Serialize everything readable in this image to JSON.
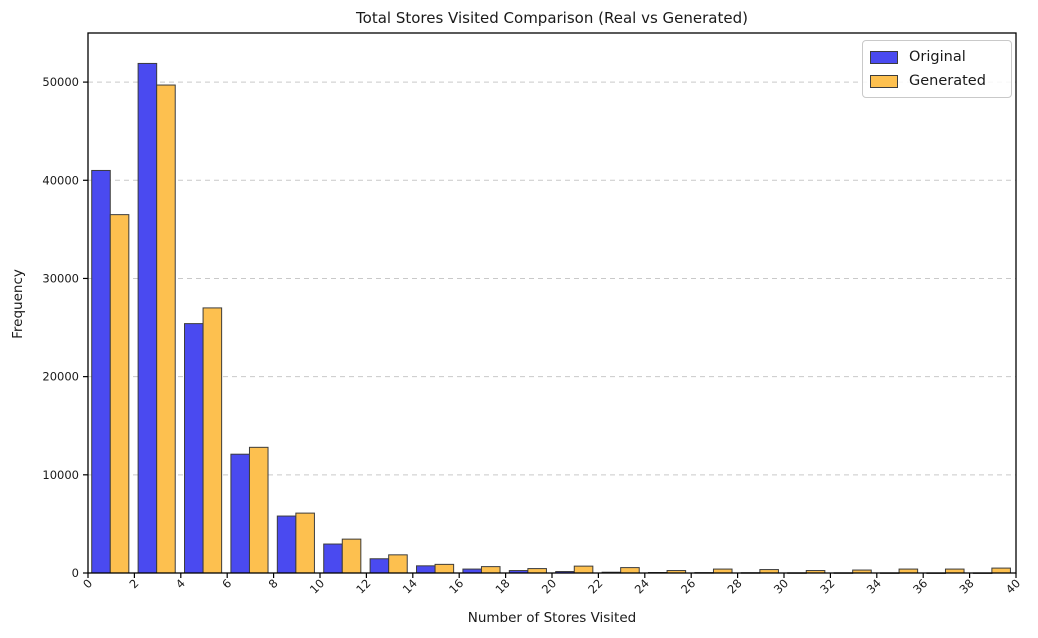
{
  "figure": {
    "title": "Total Stores Visited Comparison (Real vs Generated)",
    "xlabel": "Number of Stores Visited",
    "ylabel": "Frequency"
  },
  "chart_data": {
    "type": "bar",
    "title": "Total Stores Visited Comparison (Real vs Generated)",
    "xlabel": "Number of Stores Visited",
    "ylabel": "Frequency",
    "bin_width": 2,
    "bin_centers": [
      1,
      3,
      5,
      7,
      9,
      11,
      13,
      15,
      17,
      19,
      21,
      23,
      25,
      27,
      29,
      31,
      33,
      35,
      37,
      39
    ],
    "series": [
      {
        "name": "Original",
        "color": "#4a4af0",
        "edge_color": "#3c3c3c",
        "values": [
          41000,
          51900,
          25400,
          12100,
          5800,
          2950,
          1450,
          730,
          400,
          250,
          150,
          80,
          50,
          40,
          30,
          20,
          20,
          15,
          10,
          10
        ]
      },
      {
        "name": "Generated",
        "color": "#fdc04f",
        "edge_color": "#3c3c3c",
        "values": [
          36500,
          49700,
          27000,
          12800,
          6100,
          3450,
          1850,
          880,
          650,
          450,
          700,
          550,
          250,
          400,
          350,
          250,
          300,
          400,
          400,
          500
        ]
      }
    ],
    "x_ticks": [
      0,
      2,
      4,
      6,
      8,
      10,
      12,
      14,
      16,
      18,
      20,
      22,
      24,
      26,
      28,
      30,
      32,
      34,
      36,
      38,
      40
    ],
    "y_ticks": [
      0,
      10000,
      20000,
      30000,
      40000,
      50000
    ],
    "xlim": [
      0,
      40
    ],
    "ylim": [
      0,
      55000
    ],
    "grid": "horizontal-dashed",
    "grid_color": "#c9c9c9",
    "legend_position": "upper-right",
    "x_tick_rotation": 45
  },
  "legend": {
    "items": [
      {
        "label": "Original",
        "color": "#4a4af0"
      },
      {
        "label": "Generated",
        "color": "#fdc04f"
      }
    ]
  }
}
